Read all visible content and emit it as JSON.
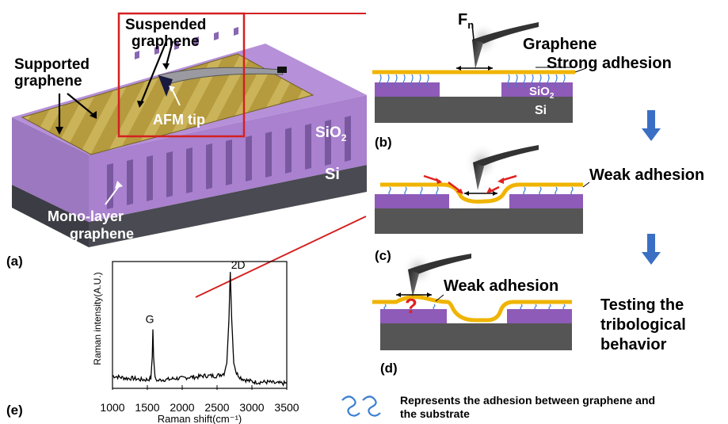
{
  "panel_a": {
    "tag": "(a)",
    "supported_label_line1": "Supported",
    "supported_label_line2": "graphene",
    "suspended_label_line1": "Suspended",
    "suspended_label_line2": "graphene",
    "afm_tip_label": "AFM tip",
    "sio2_label": "SiO",
    "sio2_sub": "2",
    "si_label": "Si",
    "monolayer_line1": "Mono-layer",
    "monolayer_line2": "graphene"
  },
  "panel_b": {
    "tag": "(b)",
    "force_label": "F",
    "force_sub": "n",
    "graphene_label": "Graphene",
    "strong_adhesion_label": "Strong adhesion",
    "sio2_label": "SiO",
    "sio2_sub": "2",
    "si_label": "Si"
  },
  "panel_c": {
    "tag": "(c)",
    "weak_adhesion_label": "Weak adhesion"
  },
  "panel_d": {
    "tag": "(d)",
    "weak_adhesion_label": "Weak adhesion",
    "question_mark": "?",
    "testing_line1": "Testing the",
    "testing_line2": "tribological",
    "testing_line3": "behavior"
  },
  "legend": {
    "text_line1": "Represents the adhesion between graphene and",
    "text_line2": "the substrate"
  },
  "panel_e": {
    "tag": "(e)"
  },
  "colors": {
    "graphene": "#f0b400",
    "sio2": "#8e5bb8",
    "si": "#555555",
    "red_outline": "#d42020",
    "arrow_blue": "#3a6fc4",
    "adhesion_blue": "#3b7fd0"
  },
  "chart_data": {
    "type": "line",
    "title": "",
    "xlabel": "Raman shift(cm⁻¹)",
    "ylabel": "Raman intensity(A.U.)",
    "xlim": [
      1000,
      3500
    ],
    "ylim": [
      0,
      1
    ],
    "x_ticks": [
      "1000",
      "1500",
      "2000",
      "2500",
      "3000",
      "3500"
    ],
    "y_ticks": [],
    "grid": false,
    "annotations": [
      {
        "text": "G",
        "x": 1580
      },
      {
        "text": "2D",
        "x": 2690
      }
    ],
    "series": [
      {
        "x": [
          1000,
          1100,
          1200,
          1300,
          1400,
          1500,
          1550,
          1570,
          1580,
          1590,
          1610,
          1650,
          1700,
          1800,
          1900,
          2000,
          2100,
          2200,
          2300,
          2400,
          2500,
          2600,
          2640,
          2670,
          2690,
          2710,
          2740,
          2780,
          2850,
          2950,
          3050,
          3150,
          3250,
          3350,
          3450,
          3500
        ],
        "values": [
          0.1,
          0.09,
          0.08,
          0.08,
          0.07,
          0.07,
          0.08,
          0.25,
          0.47,
          0.25,
          0.08,
          0.06,
          0.07,
          0.07,
          0.08,
          0.08,
          0.09,
          0.09,
          0.1,
          0.1,
          0.1,
          0.12,
          0.2,
          0.55,
          0.93,
          0.55,
          0.2,
          0.12,
          0.08,
          0.06,
          0.05,
          0.05,
          0.05,
          0.04,
          0.04,
          0.04
        ]
      }
    ]
  }
}
